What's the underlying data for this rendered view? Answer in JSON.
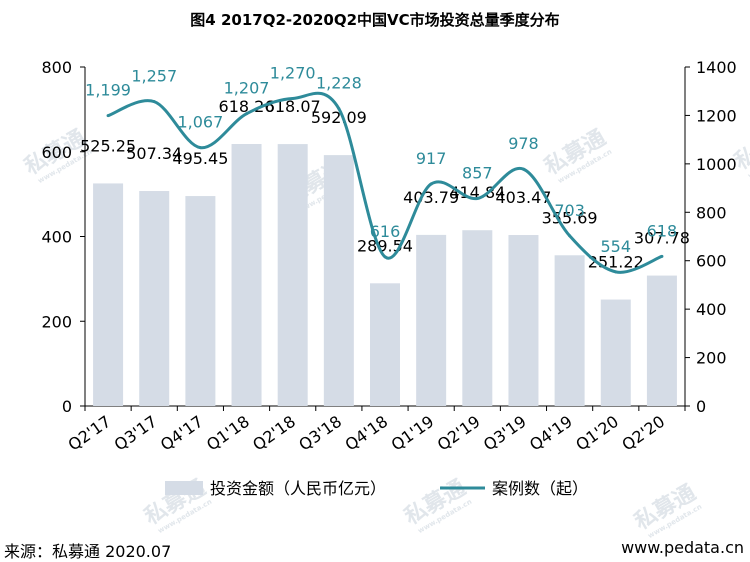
{
  "chart_data": {
    "type": "bar",
    "title": "图4 2017Q2-2020Q2中国VC市场投资总量季度分布",
    "categories": [
      "Q2'17",
      "Q3'17",
      "Q4'17",
      "Q1'18",
      "Q2'18",
      "Q3'18",
      "Q4'18",
      "Q1'19",
      "Q2'19",
      "Q3'19",
      "Q4'19",
      "Q1'20",
      "Q2'20"
    ],
    "series": [
      {
        "name": "投资金额（人民币亿元）",
        "type": "bar",
        "axis": "left",
        "values": [
          525.25,
          507.34,
          495.45,
          618.26,
          618.07,
          592.09,
          289.54,
          403.79,
          414.84,
          403.47,
          355.69,
          251.22,
          307.78
        ],
        "labels": [
          "525.25",
          "507.34",
          "495.45",
          "618.26",
          "618.07",
          "592.09",
          "289.54",
          "403.79",
          "414.84",
          "403.47",
          "355.69",
          "251.22",
          "307.78"
        ],
        "color": "#d5dce6"
      },
      {
        "name": "案例数（起）",
        "type": "line",
        "axis": "right",
        "values": [
          1199,
          1257,
          1067,
          1207,
          1270,
          1228,
          616,
          917,
          857,
          978,
          703,
          554,
          618
        ],
        "labels": [
          "1,199",
          "1,257",
          "1,067",
          "1,207",
          "1,270",
          "1,228",
          "616",
          "917",
          "857",
          "978",
          "703",
          "554",
          "618"
        ],
        "color": "#2e8b9a"
      }
    ],
    "ylim_left": [
      0,
      800
    ],
    "yticks_left": [
      "0",
      "200",
      "400",
      "600",
      "800"
    ],
    "ylim_right": [
      0,
      1400
    ],
    "yticks_right": [
      "0",
      "200",
      "400",
      "600",
      "800",
      "1000",
      "1200",
      "1400"
    ],
    "legend_position": "bottom",
    "grid": false
  },
  "footer": {
    "source": "来源：私募通 2020.07",
    "website": "www.pedata.cn"
  },
  "watermark": {
    "text": "私募通",
    "subtext": "www.pedata.cn"
  }
}
